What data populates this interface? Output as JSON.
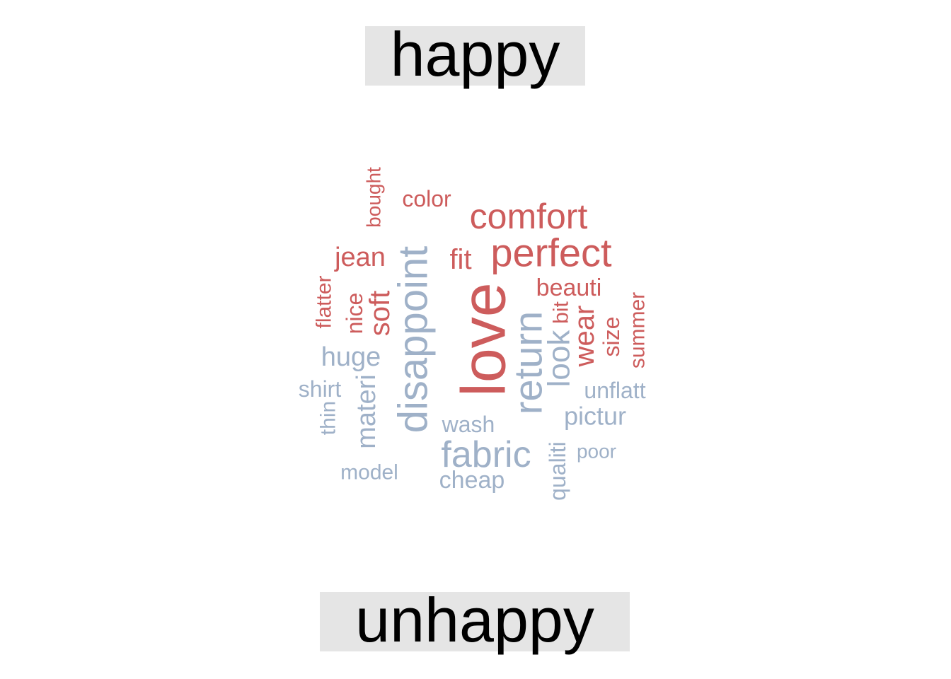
{
  "groups": {
    "top": {
      "label": "happy",
      "color": "#cd5c5c"
    },
    "bottom": {
      "label": "unhappy",
      "color": "#9fb1c8"
    }
  },
  "words": [
    {
      "text": "love",
      "group": "top"
    },
    {
      "text": "perfect",
      "group": "top"
    },
    {
      "text": "comfort",
      "group": "top"
    },
    {
      "text": "color",
      "group": "top"
    },
    {
      "text": "bought",
      "group": "top"
    },
    {
      "text": "jean",
      "group": "top"
    },
    {
      "text": "fit",
      "group": "top"
    },
    {
      "text": "beauti",
      "group": "top"
    },
    {
      "text": "soft",
      "group": "top"
    },
    {
      "text": "nice",
      "group": "top"
    },
    {
      "text": "flatter",
      "group": "top"
    },
    {
      "text": "bit",
      "group": "top"
    },
    {
      "text": "wear",
      "group": "top"
    },
    {
      "text": "size",
      "group": "top"
    },
    {
      "text": "summer",
      "group": "top"
    },
    {
      "text": "disappoint",
      "group": "bottom"
    },
    {
      "text": "return",
      "group": "bottom"
    },
    {
      "text": "fabric",
      "group": "bottom"
    },
    {
      "text": "look",
      "group": "bottom"
    },
    {
      "text": "huge",
      "group": "bottom"
    },
    {
      "text": "materi",
      "group": "bottom"
    },
    {
      "text": "shirt",
      "group": "bottom"
    },
    {
      "text": "thin",
      "group": "bottom"
    },
    {
      "text": "wash",
      "group": "bottom"
    },
    {
      "text": "unflatt",
      "group": "bottom"
    },
    {
      "text": "pictur",
      "group": "bottom"
    },
    {
      "text": "poor",
      "group": "bottom"
    },
    {
      "text": "qualiti",
      "group": "bottom"
    },
    {
      "text": "model",
      "group": "bottom"
    },
    {
      "text": "cheap",
      "group": "bottom"
    }
  ]
}
